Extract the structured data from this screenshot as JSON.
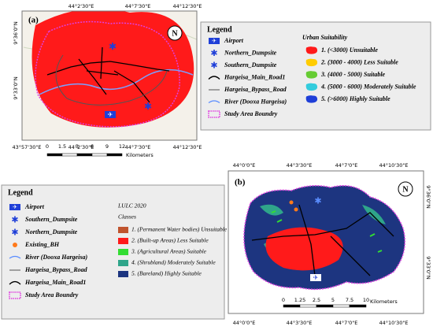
{
  "panel_a": {
    "label": "(a)",
    "top_labels": [
      "44°2'30\"E",
      "44°7'30\"E",
      "44°12'30\"E"
    ],
    "bottom_labels": [
      "43°57'30\"E",
      "44°2'30\"E",
      "44°7'30\"E",
      "44°12'30\"E"
    ],
    "left_labels": [
      "9°36'0\"N",
      "9°33'0\"N"
    ],
    "scale_ticks": [
      "0",
      "1.5",
      "3",
      "6",
      "9",
      "12"
    ],
    "scale_unit": "Kilometers"
  },
  "legend_a": {
    "title": "Legend",
    "items": [
      "Airport",
      "Northern_Dumpsite",
      "Southern_Dumpsite",
      "Hargeisa_Main_Road1",
      "Hargeisa_Bypass_Road",
      "River (Dooxa Hargeisa)",
      "Study Area Boundry"
    ],
    "classes_title": "Urban Suitability",
    "classes": [
      {
        "name": "1. (<3000) Unsuitable",
        "color": "#ff1a1a"
      },
      {
        "name": "2. (3000 - 4000) Less Suitable",
        "color": "#ffcc00"
      },
      {
        "name": "3. (4000 - 5000) Suitable",
        "color": "#66cc33"
      },
      {
        "name": "4. (5000 - 6000) Moderately Suitable",
        "color": "#33ccdd"
      },
      {
        "name": "5. (>6000) Highly Suitable",
        "color": "#1f3fd8"
      }
    ]
  },
  "panel_b": {
    "label": "(b)",
    "top_labels": [
      "44°0'0\"E",
      "44°3'30\"E",
      "44°7'0\"E",
      "44°10'30\"E"
    ],
    "bottom_labels": [
      "44°0'0\"E",
      "44°3'30\"E",
      "44°7'0\"E",
      "44°10'30\"E"
    ],
    "right_labels": [
      "9°36'0\"N",
      "9°33'0\"N"
    ],
    "scale_ticks": [
      "0",
      "1.25",
      "2.5",
      "5",
      "7.5",
      "10"
    ],
    "scale_unit": "Kilometers"
  },
  "legend_b": {
    "title": "Legend",
    "items": [
      "Airport",
      "Southern_Dumpsite",
      "Northern_Dumpsite",
      "Existing_BH",
      "River (Dooxa Hargeisa)",
      "Hargeisa_Bypass_Road",
      "Hargeisa_Main_Road1",
      "Study Area Boundry"
    ],
    "classes_heading": "LULC 2020",
    "classes_title": "Classes",
    "classes": [
      {
        "name": "1. (Permanent Water bodies) Unsuitable",
        "color": "#c0542e"
      },
      {
        "name": "2. (Built-up Areas) Less Suitable",
        "color": "#ff1a1a"
      },
      {
        "name": "3. (Agricultural Areas) Suitable",
        "color": "#33dd33"
      },
      {
        "name": "4. (Shrubland) Moderately Suitable",
        "color": "#2fa58a"
      },
      {
        "name": "5. (Bareland) Highly Suitable",
        "color": "#1d3580"
      }
    ]
  }
}
